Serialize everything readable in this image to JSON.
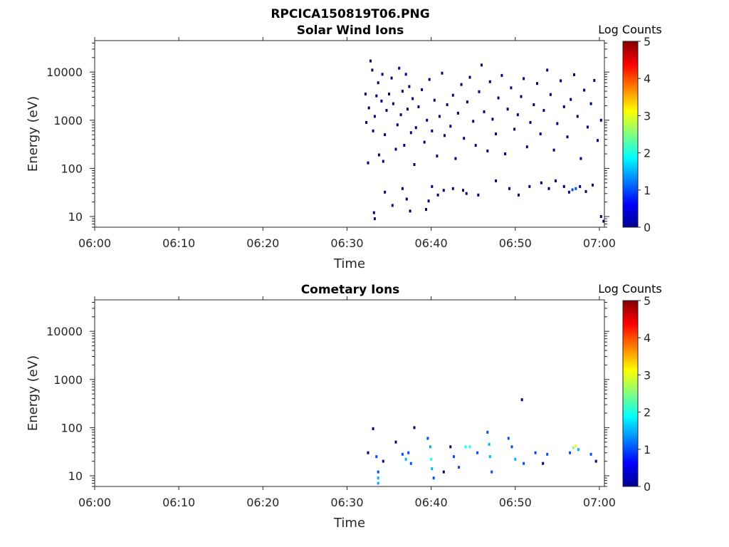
{
  "figure": {
    "title": "RPCICA150819T06.PNG"
  },
  "chart_data": [
    {
      "type": "heatmap",
      "title": "Solar Wind Ions",
      "xlabel": "Time",
      "ylabel": "Energy (eV)",
      "x_ticks": [
        "06:00",
        "06:10",
        "06:20",
        "06:30",
        "06:40",
        "06:50",
        "07:00"
      ],
      "x_range_minutes": [
        0,
        60.6
      ],
      "y_scale": "log",
      "y_range": [
        6,
        45000
      ],
      "y_ticks": [
        "10",
        "100",
        "1000",
        "10000"
      ],
      "colorbar": {
        "label": "Log Counts",
        "min": 0,
        "max": 5,
        "ticks": [
          "0",
          "1",
          "2",
          "3",
          "4",
          "5"
        ],
        "colormap": "jet"
      },
      "points": [
        [
          32.2,
          3500,
          0
        ],
        [
          32.3,
          900,
          0
        ],
        [
          32.5,
          130,
          0
        ],
        [
          32.6,
          1800,
          0
        ],
        [
          32.8,
          17000,
          0
        ],
        [
          33,
          11000,
          0
        ],
        [
          33.1,
          600,
          0
        ],
        [
          33.3,
          1200,
          0
        ],
        [
          33.5,
          3200,
          0
        ],
        [
          33.7,
          6000,
          0
        ],
        [
          33.8,
          190,
          0
        ],
        [
          34.1,
          2500,
          0
        ],
        [
          34.2,
          9000,
          0
        ],
        [
          34.3,
          140,
          0
        ],
        [
          34.5,
          500,
          0
        ],
        [
          34.7,
          1600,
          0
        ],
        [
          35,
          3500,
          0
        ],
        [
          35.3,
          7500,
          0
        ],
        [
          35.5,
          2200,
          0
        ],
        [
          35.8,
          250,
          0
        ],
        [
          36,
          800,
          0
        ],
        [
          36.2,
          12000,
          0
        ],
        [
          36.4,
          1300,
          0
        ],
        [
          36.6,
          4000,
          0
        ],
        [
          36.8,
          300,
          0
        ],
        [
          37,
          9000,
          0
        ],
        [
          37.2,
          1700,
          0
        ],
        [
          37.4,
          5000,
          0
        ],
        [
          37.6,
          550,
          0
        ],
        [
          37.8,
          2800,
          0
        ],
        [
          38,
          120,
          0
        ],
        [
          38.2,
          700,
          0
        ],
        [
          38.5,
          1900,
          0
        ],
        [
          38.9,
          4300,
          0
        ],
        [
          39.2,
          350,
          0
        ],
        [
          39.5,
          1000,
          0
        ],
        [
          39.8,
          7000,
          0
        ],
        [
          40.1,
          600,
          0
        ],
        [
          40.4,
          2600,
          0
        ],
        [
          40.7,
          180,
          0
        ],
        [
          41,
          1200,
          0
        ],
        [
          41.3,
          9500,
          0
        ],
        [
          41.6,
          480,
          0
        ],
        [
          41.9,
          2100,
          0
        ],
        [
          42.3,
          750,
          0
        ],
        [
          42.6,
          3300,
          0
        ],
        [
          42.9,
          160,
          0
        ],
        [
          43.2,
          1400,
          0
        ],
        [
          43.6,
          5500,
          0
        ],
        [
          43.9,
          420,
          0
        ],
        [
          44.3,
          2400,
          0
        ],
        [
          44.6,
          7800,
          0
        ],
        [
          45,
          950,
          0
        ],
        [
          45.3,
          300,
          0
        ],
        [
          45.7,
          3900,
          0
        ],
        [
          46,
          14000,
          0
        ],
        [
          46.3,
          1500,
          0
        ],
        [
          46.7,
          230,
          0
        ],
        [
          47,
          6300,
          0
        ],
        [
          47.3,
          1050,
          0
        ],
        [
          47.7,
          520,
          0
        ],
        [
          48,
          2900,
          0
        ],
        [
          48.4,
          8500,
          0
        ],
        [
          48.8,
          200,
          0
        ],
        [
          49.1,
          1700,
          0
        ],
        [
          49.5,
          4700,
          0
        ],
        [
          49.9,
          650,
          0
        ],
        [
          50.3,
          1300,
          0
        ],
        [
          50.7,
          3100,
          0
        ],
        [
          51,
          7300,
          0
        ],
        [
          51.4,
          280,
          0
        ],
        [
          51.8,
          900,
          0
        ],
        [
          52.2,
          2100,
          0
        ],
        [
          52.6,
          5800,
          0
        ],
        [
          53,
          520,
          0
        ],
        [
          53.4,
          1600,
          0
        ],
        [
          53.8,
          11000,
          0
        ],
        [
          54.2,
          3400,
          0
        ],
        [
          54.6,
          240,
          0
        ],
        [
          55,
          850,
          0
        ],
        [
          55.4,
          6600,
          0
        ],
        [
          55.8,
          1900,
          0
        ],
        [
          56.2,
          450,
          0
        ],
        [
          56.6,
          2700,
          0
        ],
        [
          57,
          8800,
          0
        ],
        [
          57.4,
          1200,
          0
        ],
        [
          57.8,
          160,
          0
        ],
        [
          58.2,
          4200,
          0
        ],
        [
          58.6,
          720,
          0
        ],
        [
          59,
          2200,
          0
        ],
        [
          59.4,
          6700,
          0
        ],
        [
          59.8,
          380,
          0
        ],
        [
          60.2,
          1000,
          0
        ],
        [
          33.2,
          12,
          0
        ],
        [
          33.3,
          9,
          0
        ],
        [
          34.5,
          32,
          0
        ],
        [
          35.4,
          17,
          0
        ],
        [
          36.6,
          38,
          0
        ],
        [
          37.1,
          23,
          0
        ],
        [
          37.5,
          13,
          0
        ],
        [
          39.4,
          14,
          0
        ],
        [
          39.7,
          21,
          0
        ],
        [
          40.1,
          42,
          0
        ],
        [
          40.8,
          28,
          0
        ],
        [
          41.5,
          35,
          0
        ],
        [
          42.6,
          38,
          0
        ],
        [
          43.8,
          35,
          0
        ],
        [
          44.2,
          30,
          0
        ],
        [
          45.6,
          28,
          0
        ],
        [
          47.7,
          55,
          0
        ],
        [
          49.3,
          38,
          0
        ],
        [
          50.4,
          28,
          0
        ],
        [
          51.7,
          42,
          0
        ],
        [
          53.1,
          50,
          0
        ],
        [
          54,
          38,
          0
        ],
        [
          54.8,
          55,
          0
        ],
        [
          55.8,
          42,
          0
        ],
        [
          56.4,
          32,
          0
        ],
        [
          56.8,
          36,
          1
        ],
        [
          57.2,
          38,
          1
        ],
        [
          57.7,
          42,
          0
        ],
        [
          58.4,
          33,
          0
        ],
        [
          59.2,
          45,
          0
        ],
        [
          60.2,
          10,
          0
        ],
        [
          60.5,
          8,
          0
        ]
      ]
    },
    {
      "type": "heatmap",
      "title": "Cometary Ions",
      "xlabel": "Time",
      "ylabel": "Energy (eV)",
      "x_ticks": [
        "06:00",
        "06:10",
        "06:20",
        "06:30",
        "06:40",
        "06:50",
        "07:00"
      ],
      "x_range_minutes": [
        0,
        60.6
      ],
      "y_scale": "log",
      "y_range": [
        6,
        45000
      ],
      "y_ticks": [
        "10",
        "100",
        "1000",
        "10000"
      ],
      "colorbar": {
        "label": "Log Counts",
        "min": 0,
        "max": 5,
        "ticks": [
          "0",
          "1",
          "2",
          "3",
          "4",
          "5"
        ],
        "colormap": "jet"
      },
      "points": [
        [
          32.5,
          30,
          0
        ],
        [
          33.1,
          95,
          0
        ],
        [
          33.7,
          12,
          1
        ],
        [
          33.7,
          9,
          1.5
        ],
        [
          33.7,
          7,
          1.5
        ],
        [
          33.5,
          25,
          1
        ],
        [
          34.3,
          20,
          0
        ],
        [
          35.8,
          50,
          0
        ],
        [
          36.6,
          28,
          1
        ],
        [
          37,
          22,
          1.5
        ],
        [
          37.3,
          30,
          1
        ],
        [
          37.6,
          18,
          1
        ],
        [
          38,
          100,
          0
        ],
        [
          39.6,
          60,
          1
        ],
        [
          39.9,
          40,
          1.5
        ],
        [
          40,
          22,
          2
        ],
        [
          40.1,
          14,
          1.5
        ],
        [
          40.3,
          9,
          1
        ],
        [
          41.5,
          12,
          0
        ],
        [
          42.3,
          40,
          0
        ],
        [
          42.7,
          25,
          1
        ],
        [
          43.3,
          15,
          1
        ],
        [
          44.1,
          40,
          2
        ],
        [
          44.6,
          40,
          2
        ],
        [
          45.5,
          30,
          1
        ],
        [
          46.7,
          80,
          1
        ],
        [
          46.9,
          45,
          1.5
        ],
        [
          47,
          25,
          1.5
        ],
        [
          47.2,
          12,
          1
        ],
        [
          50.8,
          380,
          0
        ],
        [
          49.2,
          60,
          1
        ],
        [
          49.6,
          40,
          1
        ],
        [
          50,
          22,
          1.5
        ],
        [
          51,
          18,
          1
        ],
        [
          52.4,
          30,
          1
        ],
        [
          53.3,
          18,
          0
        ],
        [
          53.8,
          28,
          1
        ],
        [
          56.5,
          30,
          1
        ],
        [
          56.9,
          38,
          2.5
        ],
        [
          57.2,
          42,
          3
        ],
        [
          57.5,
          35,
          1.5
        ],
        [
          59,
          28,
          1
        ],
        [
          59.6,
          20,
          0
        ]
      ]
    }
  ]
}
